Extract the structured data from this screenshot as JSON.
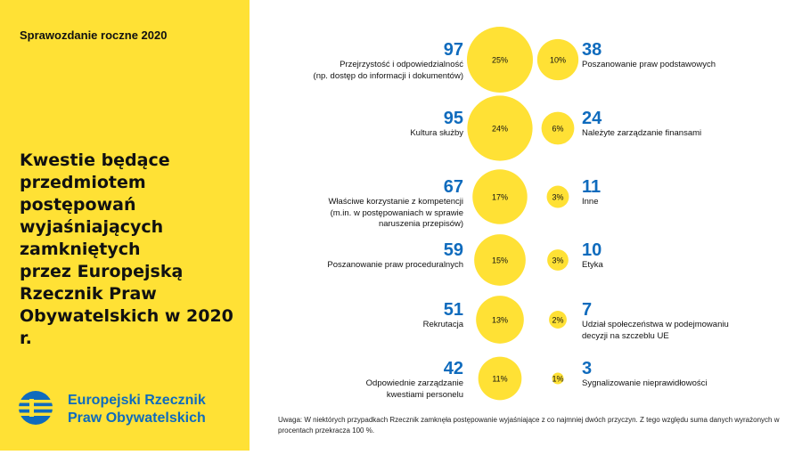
{
  "header": {
    "report_label": "Sprawozdanie roczne 2020"
  },
  "title": "Kwestie będące\nprzedmiotem\npostępowań\nwyjaśniających\nzamkniętych\nprzez Europejską\nRzecznik Praw\nObywatelskich w 2020 r.",
  "logo": {
    "text": "Europejski Rzecznik\nPraw Obywatelskich"
  },
  "footnote": "Uwaga: W niektórych przypadkach Rzecznik zamknęła postępowanie wyjaśniające z co najmniej dwóch przyczyn. Z tego względu suma danych wyrażonych w procentach przekracza 100 %.",
  "colors": {
    "yellow": "#ffe135",
    "blue": "#0f6bbd"
  },
  "chart_data": {
    "type": "bubble",
    "left": [
      {
        "count": "97",
        "percent": "25%",
        "label": "Przejrzystość i odpowiedzialność\n(np. dostęp do informacji i dokumentów)"
      },
      {
        "count": "95",
        "percent": "24%",
        "label": "Kultura służby"
      },
      {
        "count": "67",
        "percent": "17%",
        "label": "Właściwe korzystanie z kompetencji\n(m.in. w postępowaniach w sprawie\nnaruszenia przepisów)"
      },
      {
        "count": "59",
        "percent": "15%",
        "label": "Poszanowanie praw proceduralnych"
      },
      {
        "count": "51",
        "percent": "13%",
        "label": "Rekrutacja"
      },
      {
        "count": "42",
        "percent": "11%",
        "label": "Odpowiednie zarządzanie\nkwestiami personelu"
      }
    ],
    "right": [
      {
        "count": "38",
        "percent": "10%",
        "label": "Poszanowanie praw podstawowych"
      },
      {
        "count": "24",
        "percent": "6%",
        "label": "Należyte zarządzanie finansami"
      },
      {
        "count": "11",
        "percent": "3%",
        "label": "Inne"
      },
      {
        "count": "10",
        "percent": "3%",
        "label": "Etyka"
      },
      {
        "count": "7",
        "percent": "2%",
        "label": "Udział społeczeństwa w podejmowaniu\ndecyzji na szczeblu UE"
      },
      {
        "count": "3",
        "percent": "1%",
        "label": "Sygnalizowanie nieprawidłowości"
      }
    ]
  }
}
